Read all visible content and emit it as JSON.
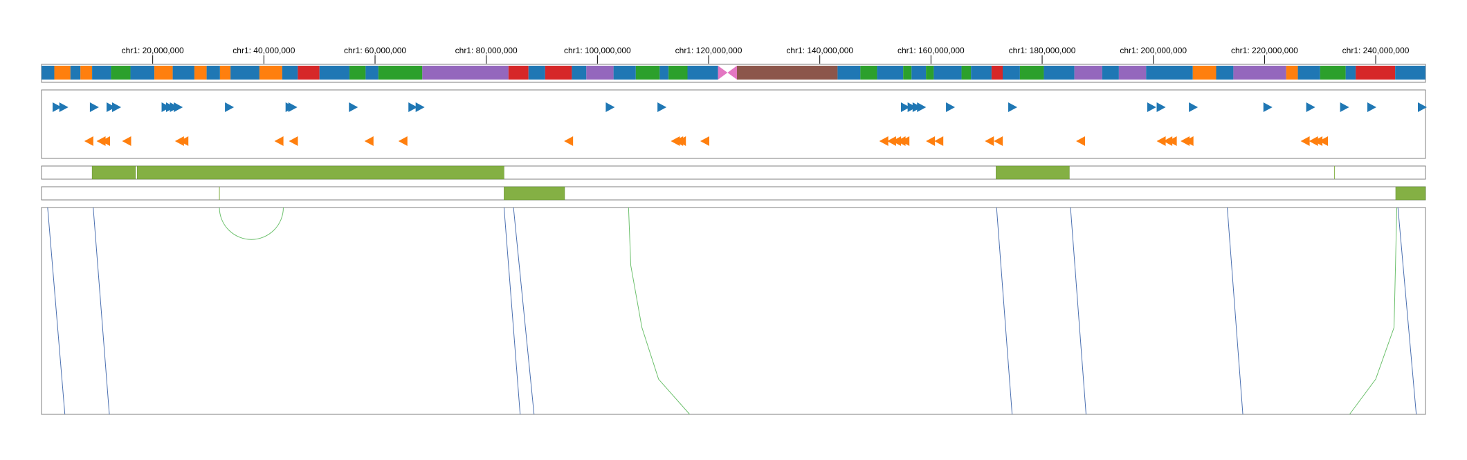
{
  "chromosome": {
    "name": "chr1",
    "length": 248956422,
    "ticks": [
      {
        "pos": 20000000,
        "label": "chr1: 20,000,000"
      },
      {
        "pos": 40000000,
        "label": "chr1: 40,000,000"
      },
      {
        "pos": 60000000,
        "label": "chr1: 60,000,000"
      },
      {
        "pos": 80000000,
        "label": "chr1: 80,000,000"
      },
      {
        "pos": 100000000,
        "label": "chr1: 100,000,000"
      },
      {
        "pos": 120000000,
        "label": "chr1: 120,000,000"
      },
      {
        "pos": 140000000,
        "label": "chr1: 140,000,000"
      },
      {
        "pos": 160000000,
        "label": "chr1: 160,000,000"
      },
      {
        "pos": 180000000,
        "label": "chr1: 180,000,000"
      },
      {
        "pos": 200000000,
        "label": "chr1: 200,000,000"
      },
      {
        "pos": 220000000,
        "label": "chr1: 220,000,000"
      },
      {
        "pos": 240000000,
        "label": "chr1: 240,000,000"
      }
    ],
    "centromere": {
      "start": 121700000,
      "end": 125100000,
      "color": "#e377c2"
    },
    "band_colors": {
      "blue": "#1f77b4",
      "orange": "#ff7f0e",
      "green": "#2ca02c",
      "red": "#d62728",
      "purple": "#9467bd",
      "brown": "#8c564b"
    },
    "bands": [
      [
        0,
        2300000,
        "blue"
      ],
      [
        2300000,
        5200000,
        "orange"
      ],
      [
        5200000,
        7000000,
        "blue"
      ],
      [
        7000000,
        9100000,
        "orange"
      ],
      [
        9100000,
        12500000,
        "blue"
      ],
      [
        12500000,
        16000000,
        "green"
      ],
      [
        16000000,
        20300000,
        "blue"
      ],
      [
        20300000,
        23600000,
        "orange"
      ],
      [
        23600000,
        27500000,
        "blue"
      ],
      [
        27500000,
        29700000,
        "orange"
      ],
      [
        29700000,
        32100000,
        "blue"
      ],
      [
        32100000,
        34000000,
        "orange"
      ],
      [
        34000000,
        39200000,
        "blue"
      ],
      [
        39200000,
        43300000,
        "orange"
      ],
      [
        43300000,
        46100000,
        "blue"
      ],
      [
        46100000,
        50000000,
        "red"
      ],
      [
        50000000,
        55400000,
        "blue"
      ],
      [
        55400000,
        58300000,
        "green"
      ],
      [
        58300000,
        60600000,
        "blue"
      ],
      [
        60600000,
        68500000,
        "green"
      ],
      [
        68500000,
        84000000,
        "purple"
      ],
      [
        84000000,
        87600000,
        "red"
      ],
      [
        87600000,
        90600000,
        "blue"
      ],
      [
        90600000,
        95400000,
        "red"
      ],
      [
        95400000,
        98000000,
        "blue"
      ],
      [
        98000000,
        102900000,
        "purple"
      ],
      [
        102900000,
        106900000,
        "blue"
      ],
      [
        106900000,
        111200000,
        "green"
      ],
      [
        111200000,
        112800000,
        "blue"
      ],
      [
        112800000,
        116200000,
        "green"
      ],
      [
        116200000,
        121700000,
        "blue"
      ],
      [
        125100000,
        143200000,
        "brown"
      ],
      [
        143200000,
        147300000,
        "blue"
      ],
      [
        147300000,
        150300000,
        "green"
      ],
      [
        150300000,
        155000000,
        "blue"
      ],
      [
        155000000,
        156500000,
        "green"
      ],
      [
        156500000,
        159100000,
        "blue"
      ],
      [
        159100000,
        160500000,
        "green"
      ],
      [
        160500000,
        165500000,
        "blue"
      ],
      [
        165500000,
        167200000,
        "green"
      ],
      [
        167200000,
        170900000,
        "blue"
      ],
      [
        170900000,
        172900000,
        "red"
      ],
      [
        172900000,
        176000000,
        "blue"
      ],
      [
        176000000,
        180300000,
        "green"
      ],
      [
        180300000,
        185800000,
        "blue"
      ],
      [
        185800000,
        190800000,
        "purple"
      ],
      [
        190800000,
        193800000,
        "blue"
      ],
      [
        193800000,
        198700000,
        "purple"
      ],
      [
        198700000,
        207100000,
        "blue"
      ],
      [
        207100000,
        211300000,
        "orange"
      ],
      [
        211300000,
        214400000,
        "blue"
      ],
      [
        214400000,
        223900000,
        "purple"
      ],
      [
        223900000,
        226000000,
        "orange"
      ],
      [
        226000000,
        230000000,
        "blue"
      ],
      [
        230000000,
        234600000,
        "green"
      ],
      [
        234600000,
        236400000,
        "blue"
      ],
      [
        236400000,
        243500000,
        "red"
      ],
      [
        243500000,
        248956422,
        "blue"
      ]
    ]
  },
  "colors": {
    "forward": "#1f77b4",
    "reverse": "#ff7f0e",
    "segment": "#84b044",
    "segment_border": "#5f8a2a",
    "arc_green": "#6cc06c",
    "link_blue": "#4a6fb0",
    "frame": "#7f7f7f"
  },
  "forward_genes": [
    2000000,
    3200000,
    8700000,
    11700000,
    12700000,
    21600000,
    22400000,
    23100000,
    23800000,
    33000000,
    43900000,
    44400000,
    55300000,
    66000000,
    67300000,
    101500000,
    110800000,
    154600000,
    155800000,
    156700000,
    157500000,
    162700000,
    173900000,
    198900000,
    200600000,
    206400000,
    219800000,
    227500000,
    233600000,
    238500000,
    248500000
  ],
  "reverse_genes": [
    7700000,
    9900000,
    10700000,
    14500000,
    24000000,
    24800000,
    41900000,
    44500000,
    58100000,
    64200000,
    94000000,
    113200000,
    113800000,
    114300000,
    118500000,
    150700000,
    152100000,
    153000000,
    153800000,
    154500000,
    159100000,
    160600000,
    169700000,
    171300000,
    186100000,
    200600000,
    201800000,
    202600000,
    204900000,
    205600000,
    226500000,
    228000000,
    228800000,
    229800000
  ],
  "segment_track_1": [
    [
      9100000,
      16900000
    ],
    [
      17200000,
      83200000
    ],
    [
      171700000,
      184900000
    ]
  ],
  "segment_track_1_marks": [
    232600000
  ],
  "segment_track_2": [
    [
      83200000,
      94100000
    ],
    [
      243600000,
      248956422
    ]
  ],
  "segment_track_2_marks": [
    32000000
  ],
  "arcs": [
    [
      32000000,
      43500000
    ]
  ],
  "links": [
    {
      "top": 1100000,
      "bottom": 4200000,
      "color": "link_blue"
    },
    {
      "top": 9300000,
      "bottom": 12200000,
      "color": "link_blue"
    },
    {
      "top": 83200000,
      "bottom": 86100000,
      "color": "link_blue"
    },
    {
      "top": 84900000,
      "bottom": 88600000,
      "color": "link_blue"
    },
    {
      "top": 171800000,
      "bottom": 174600000,
      "color": "link_blue"
    },
    {
      "top": 185100000,
      "bottom": 187900000,
      "color": "link_blue"
    },
    {
      "top": 213300000,
      "bottom": 216100000,
      "color": "link_blue"
    },
    {
      "top": 244000000,
      "bottom": 247300000,
      "color": "link_blue"
    }
  ],
  "curves": [
    {
      "points": [
        [
          105600000,
          0
        ],
        [
          106000000,
          0.28
        ],
        [
          108000000,
          0.58
        ],
        [
          111000000,
          0.83
        ],
        [
          116600000,
          1
        ]
      ]
    },
    {
      "points": [
        [
          243800000,
          0
        ],
        [
          243300000,
          0.58
        ],
        [
          240000000,
          0.83
        ],
        [
          235300000,
          1
        ]
      ]
    }
  ]
}
